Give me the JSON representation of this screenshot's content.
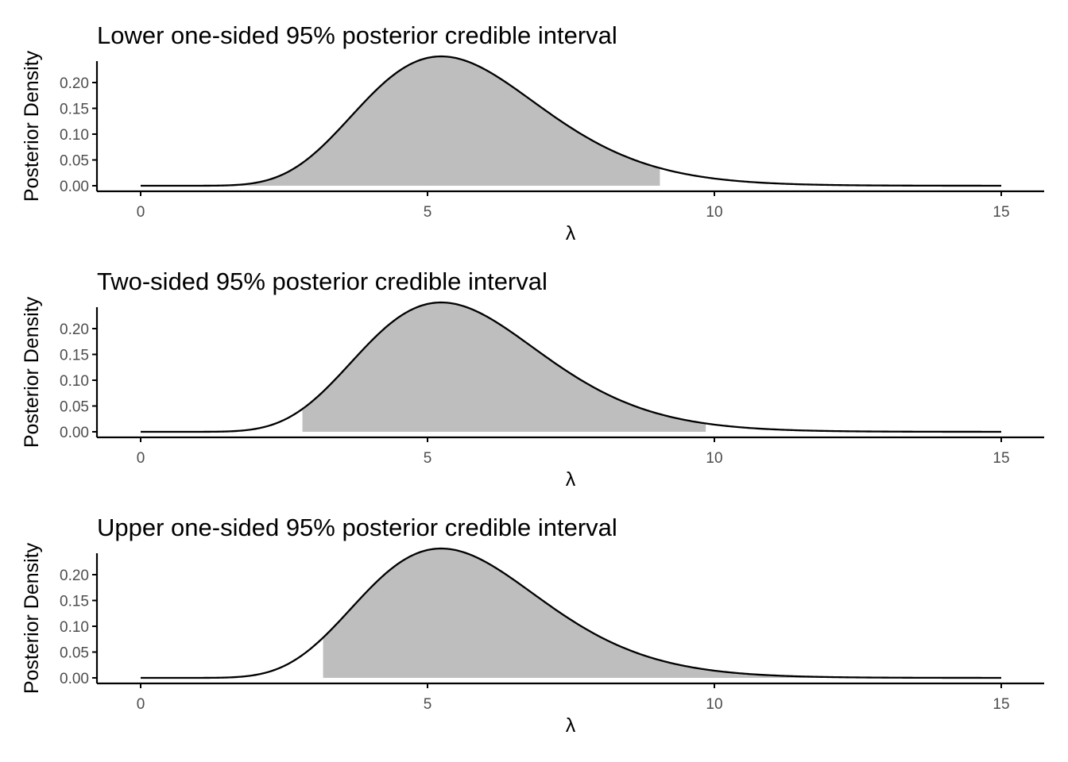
{
  "chart_data": [
    {
      "type": "area",
      "title": "Lower one-sided 95% posterior credible interval",
      "xlabel": "λ",
      "ylabel": "Posterior Density",
      "xlim": [
        0,
        15
      ],
      "ylim": [
        0,
        0.23
      ],
      "x_ticks": [
        "0",
        "5",
        "10",
        "15"
      ],
      "y_ticks": [
        "0.00",
        "0.05",
        "0.10",
        "0.15",
        "0.20"
      ],
      "density": {
        "shape": 12,
        "rate": 2.1,
        "x_range": [
          0,
          15
        ]
      },
      "shaded_interval": [
        0,
        9.05
      ],
      "grid": false
    },
    {
      "type": "area",
      "title": "Two-sided 95% posterior credible interval",
      "xlabel": "λ",
      "ylabel": "Posterior Density",
      "xlim": [
        0,
        15
      ],
      "ylim": [
        0,
        0.23
      ],
      "x_ticks": [
        "0",
        "5",
        "10",
        "15"
      ],
      "y_ticks": [
        "0.00",
        "0.05",
        "0.10",
        "0.15",
        "0.20"
      ],
      "density": {
        "shape": 12,
        "rate": 2.1,
        "x_range": [
          0,
          15
        ]
      },
      "shaded_interval": [
        2.82,
        9.85
      ],
      "grid": false
    },
    {
      "type": "area",
      "title": "Upper one-sided 95% posterior credible interval",
      "xlabel": "λ",
      "ylabel": "Posterior Density",
      "xlim": [
        0,
        15
      ],
      "ylim": [
        0,
        0.23
      ],
      "x_ticks": [
        "0",
        "5",
        "10",
        "15"
      ],
      "y_ticks": [
        "0.00",
        "0.05",
        "0.10",
        "0.15",
        "0.20"
      ],
      "density": {
        "shape": 12,
        "rate": 2.1,
        "x_range": [
          0,
          15
        ]
      },
      "shaded_interval": [
        3.18,
        15
      ],
      "grid": false
    }
  ]
}
